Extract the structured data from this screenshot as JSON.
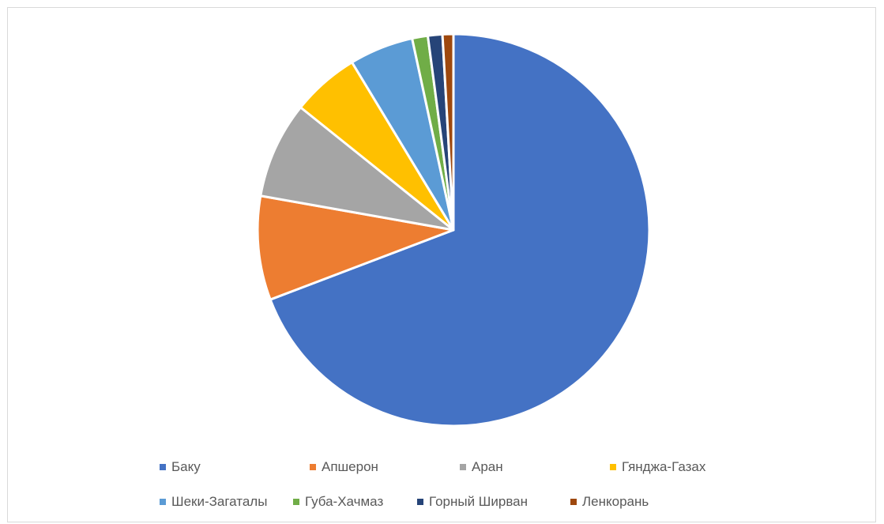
{
  "chart_data": {
    "type": "pie",
    "start_angle_deg": 0,
    "direction": "clockwise",
    "legend_position": "bottom",
    "slices": [
      {
        "label": "Баку",
        "value": 69.5,
        "color": "#4472C4"
      },
      {
        "label": "Апшерон",
        "value": 8.6,
        "color": "#ED7D31"
      },
      {
        "label": "Аран",
        "value": 8.0,
        "color": "#A5A5A5"
      },
      {
        "label": "Гянджа-Газах",
        "value": 5.6,
        "color": "#FFC000"
      },
      {
        "label": "Шеки-Загаталы",
        "value": 5.3,
        "color": "#5B9BD5"
      },
      {
        "label": "Губа-Хачмаз",
        "value": 1.3,
        "color": "#70AD47"
      },
      {
        "label": "Горный Ширван",
        "value": 1.2,
        "color": "#264478"
      },
      {
        "label": "Ленкорань",
        "value": 0.9,
        "color": "#9E480E"
      }
    ]
  }
}
